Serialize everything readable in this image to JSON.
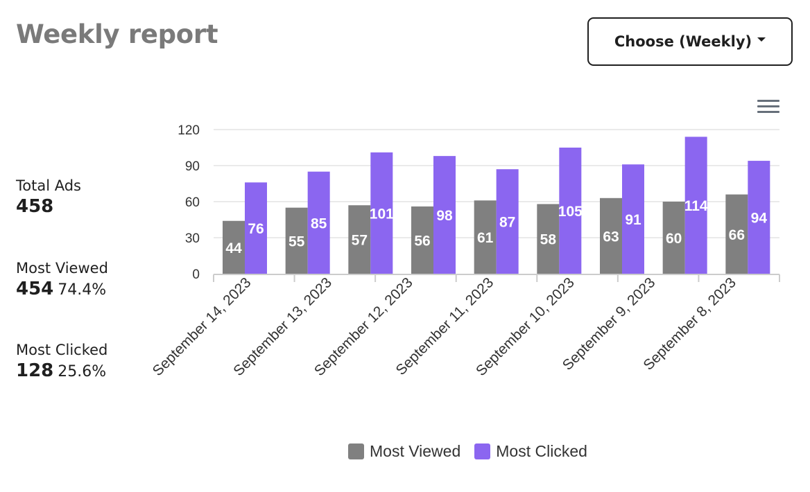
{
  "header": {
    "title": "Weekly report",
    "choose_label": "Choose (Weekly)"
  },
  "stats": {
    "total_label": "Total Ads",
    "total_value": "458",
    "viewed_label": "Most Viewed",
    "viewed_value": "454",
    "viewed_percent": "74.4%",
    "clicked_label": "Most Clicked",
    "clicked_value": "128",
    "clicked_percent": "25.6%"
  },
  "icons": {
    "menu": "hamburger-menu-icon",
    "dropdown": "caret-down-icon"
  },
  "colors": {
    "most_viewed": "#808080",
    "most_clicked": "#8b66f0",
    "title": "#7a7a7a"
  },
  "chart_data": {
    "type": "bar",
    "title": "",
    "xlabel": "",
    "ylabel": "",
    "ylim": [
      0,
      120
    ],
    "yticks": [
      0,
      30,
      60,
      90,
      120
    ],
    "grid": true,
    "legend_position": "bottom",
    "categories": [
      "September 14, 2023",
      "September 13, 2023",
      "September 12, 2023",
      "September 11, 2023",
      "September 10, 2023",
      "September 9, 2023",
      "September 8, 2023",
      "",
      ""
    ],
    "series": [
      {
        "name": "Most Viewed",
        "color": "#808080",
        "values": [
          44,
          55,
          57,
          56,
          61,
          58,
          63,
          60,
          66
        ]
      },
      {
        "name": "Most Clicked",
        "color": "#8b66f0",
        "values": [
          76,
          85,
          101,
          98,
          87,
          105,
          91,
          114,
          94
        ]
      }
    ]
  }
}
